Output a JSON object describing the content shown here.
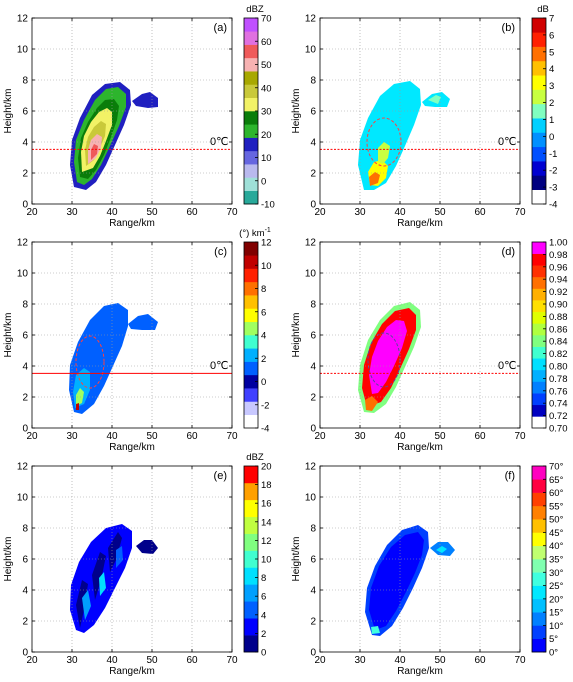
{
  "figure": {
    "panels": [
      {
        "id": "a",
        "label": "(a)",
        "xlabel": "Range/km",
        "ylabel": "Height/km",
        "x_ticks": [
          "20",
          "30",
          "40",
          "50",
          "60",
          "70"
        ],
        "y_ticks": [
          "0",
          "2",
          "4",
          "6",
          "8",
          "10",
          "12"
        ],
        "zero_line_label": "0℃",
        "colorbar_unit": "dBZ",
        "colorbar_ticks": [
          "-10",
          "0",
          "10",
          "20",
          "30",
          "40",
          "50",
          "60",
          "70"
        ],
        "colorbar_colors": [
          "#28a99a",
          "#9fe0d8",
          "#b9b9ee",
          "#6666e0",
          "#2020c0",
          "#2db52d",
          "#0a7d0a",
          "#f2f266",
          "#c9c93a",
          "#a8a800",
          "#f7b2b2",
          "#ef5a5a",
          "#e070e0",
          "#c050ff"
        ]
      },
      {
        "id": "b",
        "label": "(b)",
        "xlabel": "Range/km",
        "ylabel": "Height/km",
        "x_ticks": [
          "20",
          "30",
          "40",
          "50",
          "60",
          "70"
        ],
        "y_ticks": [
          "0",
          "2",
          "4",
          "6",
          "8",
          "10",
          "12"
        ],
        "zero_line_label": "0℃",
        "colorbar_unit": "dB",
        "colorbar_ticks": [
          "-4",
          "-3",
          "-2",
          "-1",
          "0",
          "1",
          "2",
          "3",
          "4",
          "5",
          "6",
          "7"
        ],
        "colorbar_colors": [
          "#ffffff",
          "#000080",
          "#0000d0",
          "#0050ff",
          "#0090ff",
          "#00d0ff",
          "#80ffc0",
          "#c8ff40",
          "#ffff00",
          "#ffc000",
          "#ff7000",
          "#ff2000",
          "#d00000"
        ]
      },
      {
        "id": "c",
        "label": "(c)",
        "xlabel": "Range/km",
        "ylabel": "Height/km",
        "x_ticks": [
          "20",
          "30",
          "40",
          "50",
          "60",
          "70"
        ],
        "y_ticks": [
          "0",
          "2",
          "4",
          "6",
          "8",
          "10",
          "12"
        ],
        "zero_line_label": "0℃",
        "colorbar_unit": "(°) km",
        "colorbar_unit_sup": "-1",
        "colorbar_ticks": [
          "-4",
          "-2",
          "0",
          "2",
          "4",
          "6",
          "8",
          "10",
          "12"
        ],
        "colorbar_colors": [
          "#ffffff",
          "#c8c8ff",
          "#4040ff",
          "#0000a0",
          "#0060ff",
          "#00b0ff",
          "#40ffd0",
          "#a0ff60",
          "#ffff00",
          "#ffc000",
          "#ff7000",
          "#ff2000",
          "#c00000",
          "#800000"
        ]
      },
      {
        "id": "d",
        "label": "(d)",
        "xlabel": "Range/km",
        "ylabel": "Height/km",
        "x_ticks": [
          "20",
          "30",
          "40",
          "50",
          "60",
          "70"
        ],
        "y_ticks": [
          "0",
          "2",
          "4",
          "6",
          "8",
          "10",
          "12"
        ],
        "zero_line_label": "0℃",
        "colorbar_unit": "",
        "colorbar_ticks": [
          "0.70",
          "0.72",
          "0.74",
          "0.76",
          "0.78",
          "0.80",
          "0.82",
          "0.84",
          "0.86",
          "0.88",
          "0.90",
          "0.92",
          "0.94",
          "0.96",
          "0.98",
          "1.00"
        ],
        "colorbar_colors": [
          "#ffffff",
          "#0000c0",
          "#0040ff",
          "#0080ff",
          "#00b0ff",
          "#00e0ff",
          "#40ffd0",
          "#80ff80",
          "#b0ff40",
          "#e0ff00",
          "#ffe000",
          "#ffb000",
          "#ff7000",
          "#ff3000",
          "#ff0000",
          "#ff00ff"
        ]
      },
      {
        "id": "e",
        "label": "(e)",
        "xlabel": "Range/km",
        "ylabel": "Height/km",
        "x_ticks": [
          "20",
          "30",
          "40",
          "50",
          "60",
          "70"
        ],
        "y_ticks": [
          "0",
          "2",
          "4",
          "6",
          "8",
          "10",
          "12"
        ],
        "zero_line_label": "",
        "colorbar_unit": "dBZ",
        "colorbar_ticks": [
          "0",
          "2",
          "4",
          "6",
          "8",
          "10",
          "12",
          "14",
          "16",
          "18",
          "20"
        ],
        "colorbar_colors": [
          "#00008b",
          "#0000ff",
          "#0060ff",
          "#00a0ff",
          "#00e0ff",
          "#40ffd0",
          "#80ff80",
          "#c0ff40",
          "#ffff00",
          "#ffa000",
          "#ff0000"
        ]
      },
      {
        "id": "f",
        "label": "(f)",
        "xlabel": "Range/km",
        "ylabel": "Height/km",
        "x_ticks": [
          "20",
          "30",
          "40",
          "50",
          "60",
          "70"
        ],
        "y_ticks": [
          "0",
          "2",
          "4",
          "6",
          "8",
          "10",
          "12"
        ],
        "zero_line_label": "",
        "colorbar_unit": "",
        "colorbar_ticks": [
          "0°",
          "5°",
          "10°",
          "15°",
          "20°",
          "25°",
          "30°",
          "35°",
          "40°",
          "45°",
          "50°",
          "55°",
          "60°",
          "65°",
          "70°"
        ],
        "colorbar_colors": [
          "#0000ff",
          "#0040ff",
          "#0080ff",
          "#00c0ff",
          "#00e8ff",
          "#40ffe0",
          "#80ffb0",
          "#c0ff70",
          "#ffff00",
          "#ffc000",
          "#ff8000",
          "#ff4000",
          "#ff0040",
          "#ff00c0"
        ]
      }
    ]
  }
}
